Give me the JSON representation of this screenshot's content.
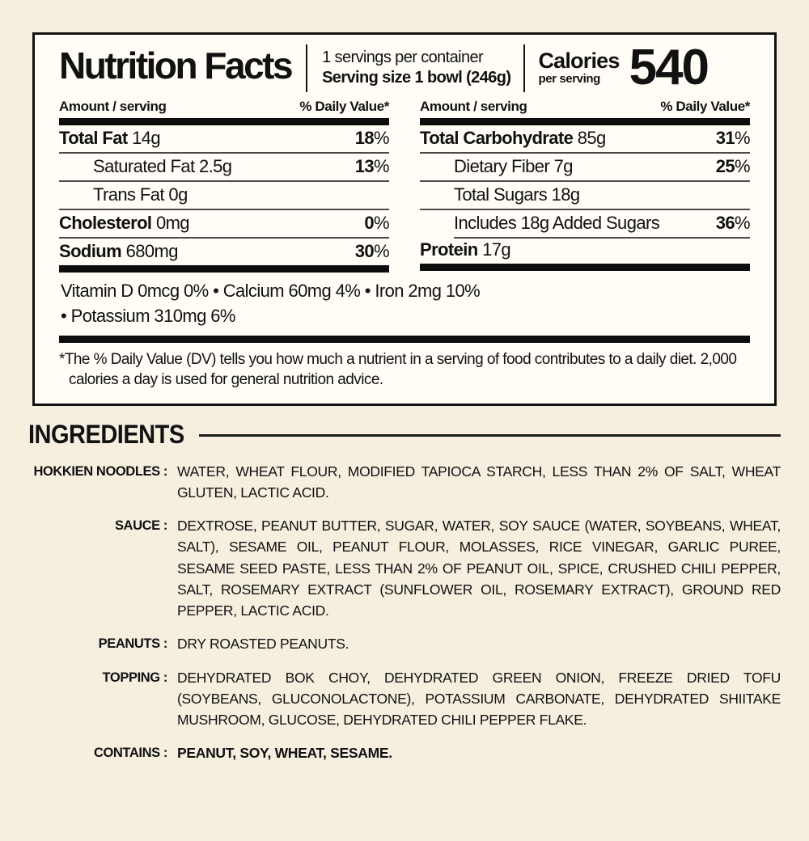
{
  "colors": {
    "background": "#f6efe0",
    "panel_background": "#fffdf6",
    "text": "#111111",
    "bar": "#0d0d0d"
  },
  "nutrition_panel": {
    "title": "Nutrition Facts",
    "servings_per_container": "1 servings per container",
    "serving_size": "Serving size 1 bowl (246g)",
    "calories_label": "Calories",
    "calories_sub": "per serving",
    "calories_value": "540",
    "column_header_amount": "Amount / serving",
    "column_header_dv": "% Daily Value*",
    "left_rows": [
      {
        "bold": "Total Fat",
        "rest": "14g",
        "dv": "18",
        "sym": "%"
      },
      {
        "bold": "",
        "rest": "Saturated Fat 2.5g",
        "dv": "13",
        "sym": "%"
      },
      {
        "bold": "",
        "rest": "Trans Fat 0g",
        "dv": "",
        "sym": ""
      },
      {
        "bold": "Cholesterol",
        "rest": "0mg",
        "dv": "0",
        "sym": "%"
      },
      {
        "bold": "Sodium",
        "rest": "680mg",
        "dv": "30",
        "sym": "%"
      }
    ],
    "right_rows": [
      {
        "bold": "Total Carbohydrate",
        "rest": "85g",
        "dv": "31",
        "sym": "%"
      },
      {
        "bold": "",
        "rest": "Dietary Fiber 7g",
        "dv": "25",
        "sym": "%"
      },
      {
        "bold": "",
        "rest": "Total Sugars 18g",
        "dv": "",
        "sym": ""
      },
      {
        "bold": "",
        "rest": "Includes 18g Added Sugars",
        "dv": "36",
        "sym": "%"
      },
      {
        "bold": "Protein",
        "rest": "17g",
        "dv": "",
        "sym": ""
      }
    ],
    "micronutrients_line1": "Vitamin D 0mcg 0%  •  Calcium 60mg 4%  •  Iron 2mg 10%",
    "micronutrients_line2": "•  Potassium 310mg 6%",
    "footnote": "*The % Daily Value (DV) tells you how much a nutrient in a serving of food contributes to a daily diet. 2,000 calories a day is used for general nutrition advice."
  },
  "ingredients": {
    "heading": "INGREDIENTS",
    "items": [
      {
        "label": "HOKKIEN NOODLES :",
        "text": "WATER, WHEAT FLOUR, MODIFIED TAPIOCA STARCH, LESS THAN 2% OF SALT, WHEAT GLUTEN, LACTIC ACID."
      },
      {
        "label": "SAUCE :",
        "text": "DEXTROSE, PEANUT BUTTER, SUGAR, WATER, SOY SAUCE (WATER, SOYBEANS, WHEAT, SALT), SESAME OIL, PEANUT FLOUR, MOLASSES, RICE VINEGAR, GARLIC PUREE, SESAME SEED PASTE, LESS THAN 2% OF PEANUT OIL, SPICE, CRUSHED CHILI PEPPER, SALT, ROSEMARY EXTRACT (SUNFLOWER OIL, ROSEMARY EXTRACT), GROUND RED PEPPER, LACTIC ACID."
      },
      {
        "label": "PEANUTS :",
        "text": "DRY ROASTED PEANUTS."
      },
      {
        "label": "TOPPING :",
        "text": "DEHYDRATED BOK CHOY, DEHYDRATED GREEN ONION, FREEZE DRIED TOFU (SOYBEANS, GLUCONOLACTONE), POTASSIUM CARBONATE, DEHYDRATED SHIITAKE MUSHROOM, GLUCOSE, DEHYDRATED CHILI PEPPER FLAKE."
      },
      {
        "label": "CONTAINS :",
        "text": "PEANUT, SOY, WHEAT, SESAME."
      }
    ]
  }
}
